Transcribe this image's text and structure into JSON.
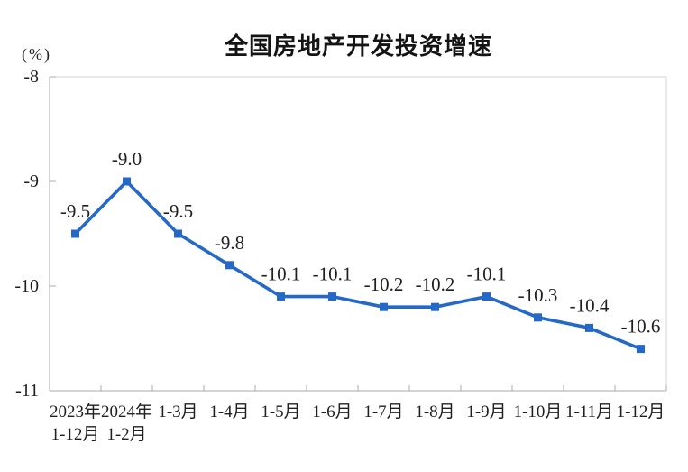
{
  "page": {
    "background_color": "#ffffff"
  },
  "chart_data": {
    "type": "line",
    "title": "全国房地产开发投资增速",
    "unit_label": "(%)",
    "categories": [
      [
        "2023年",
        "1-12月"
      ],
      [
        "2024年",
        "1-2月"
      ],
      [
        "1-3月"
      ],
      [
        "1-4月"
      ],
      [
        "1-5月"
      ],
      [
        "1-6月"
      ],
      [
        "1-7月"
      ],
      [
        "1-8月"
      ],
      [
        "1-9月"
      ],
      [
        "1-10月"
      ],
      [
        "1-11月"
      ],
      [
        "1-12月"
      ]
    ],
    "values": [
      -9.5,
      -9.0,
      -9.5,
      -9.8,
      -10.1,
      -10.1,
      -10.2,
      -10.2,
      -10.1,
      -10.3,
      -10.4,
      -10.6
    ],
    "data_labels": [
      "-9.5",
      "-9.0",
      "-9.5",
      "-9.8",
      "-10.1",
      "-10.1",
      "-10.2",
      "-10.2",
      "-10.1",
      "-10.3",
      "-10.4",
      "-10.6"
    ],
    "ylim": [
      -11,
      -8
    ],
    "yticks": [
      "-8",
      "-9",
      "-10",
      "-11"
    ],
    "ytick_values": [
      -8,
      -9,
      -10,
      -11
    ],
    "xlabel": "",
    "ylabel": "(%)",
    "grid": false,
    "legend_position": "none",
    "marker": "square",
    "line_color": "#2468c8",
    "marker_color": "#2468c8",
    "axis_color": "#ababab",
    "plot_border_color": "#d6d6d6",
    "text_color": "#1f1f1f"
  }
}
